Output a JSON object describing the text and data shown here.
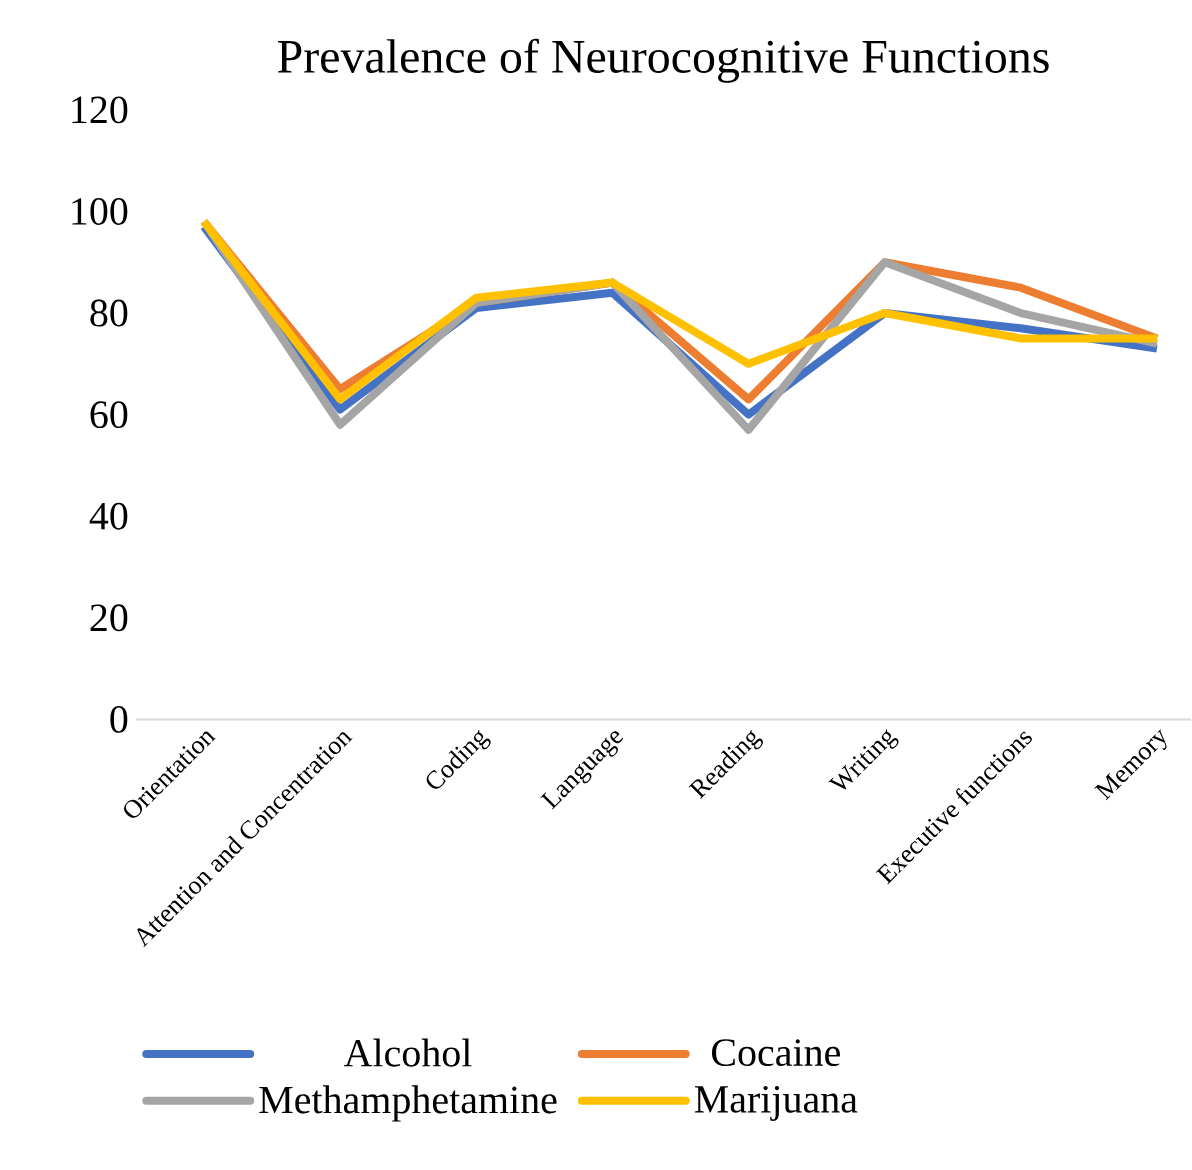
{
  "chart_data": {
    "type": "line",
    "title": "Prevalence of Neurocognitive Functions",
    "categories": [
      "Orientation",
      "Attention and Concentration",
      "Coding",
      "Language",
      "Reading",
      "Writing",
      "Executive functions",
      "Memory"
    ],
    "series": [
      {
        "name": "Alcohol",
        "color": "#4472c4",
        "values": [
          97,
          61,
          81,
          84,
          60,
          80,
          77,
          73
        ]
      },
      {
        "name": "Cocaine",
        "color": "#ed7d31",
        "values": [
          98,
          65,
          82,
          86,
          63,
          90,
          85,
          75
        ]
      },
      {
        "name": "Methamphetamine",
        "color": "#a5a5a5",
        "values": [
          98,
          58,
          82,
          86,
          57,
          90,
          80,
          74
        ]
      },
      {
        "name": "Marijuana",
        "color": "#ffc000",
        "values": [
          98,
          63,
          83,
          86,
          70,
          80,
          75,
          75
        ]
      }
    ],
    "ylim": [
      0,
      120
    ],
    "yticks": [
      0,
      20,
      40,
      60,
      80,
      100,
      120
    ],
    "legend": "bottom"
  }
}
